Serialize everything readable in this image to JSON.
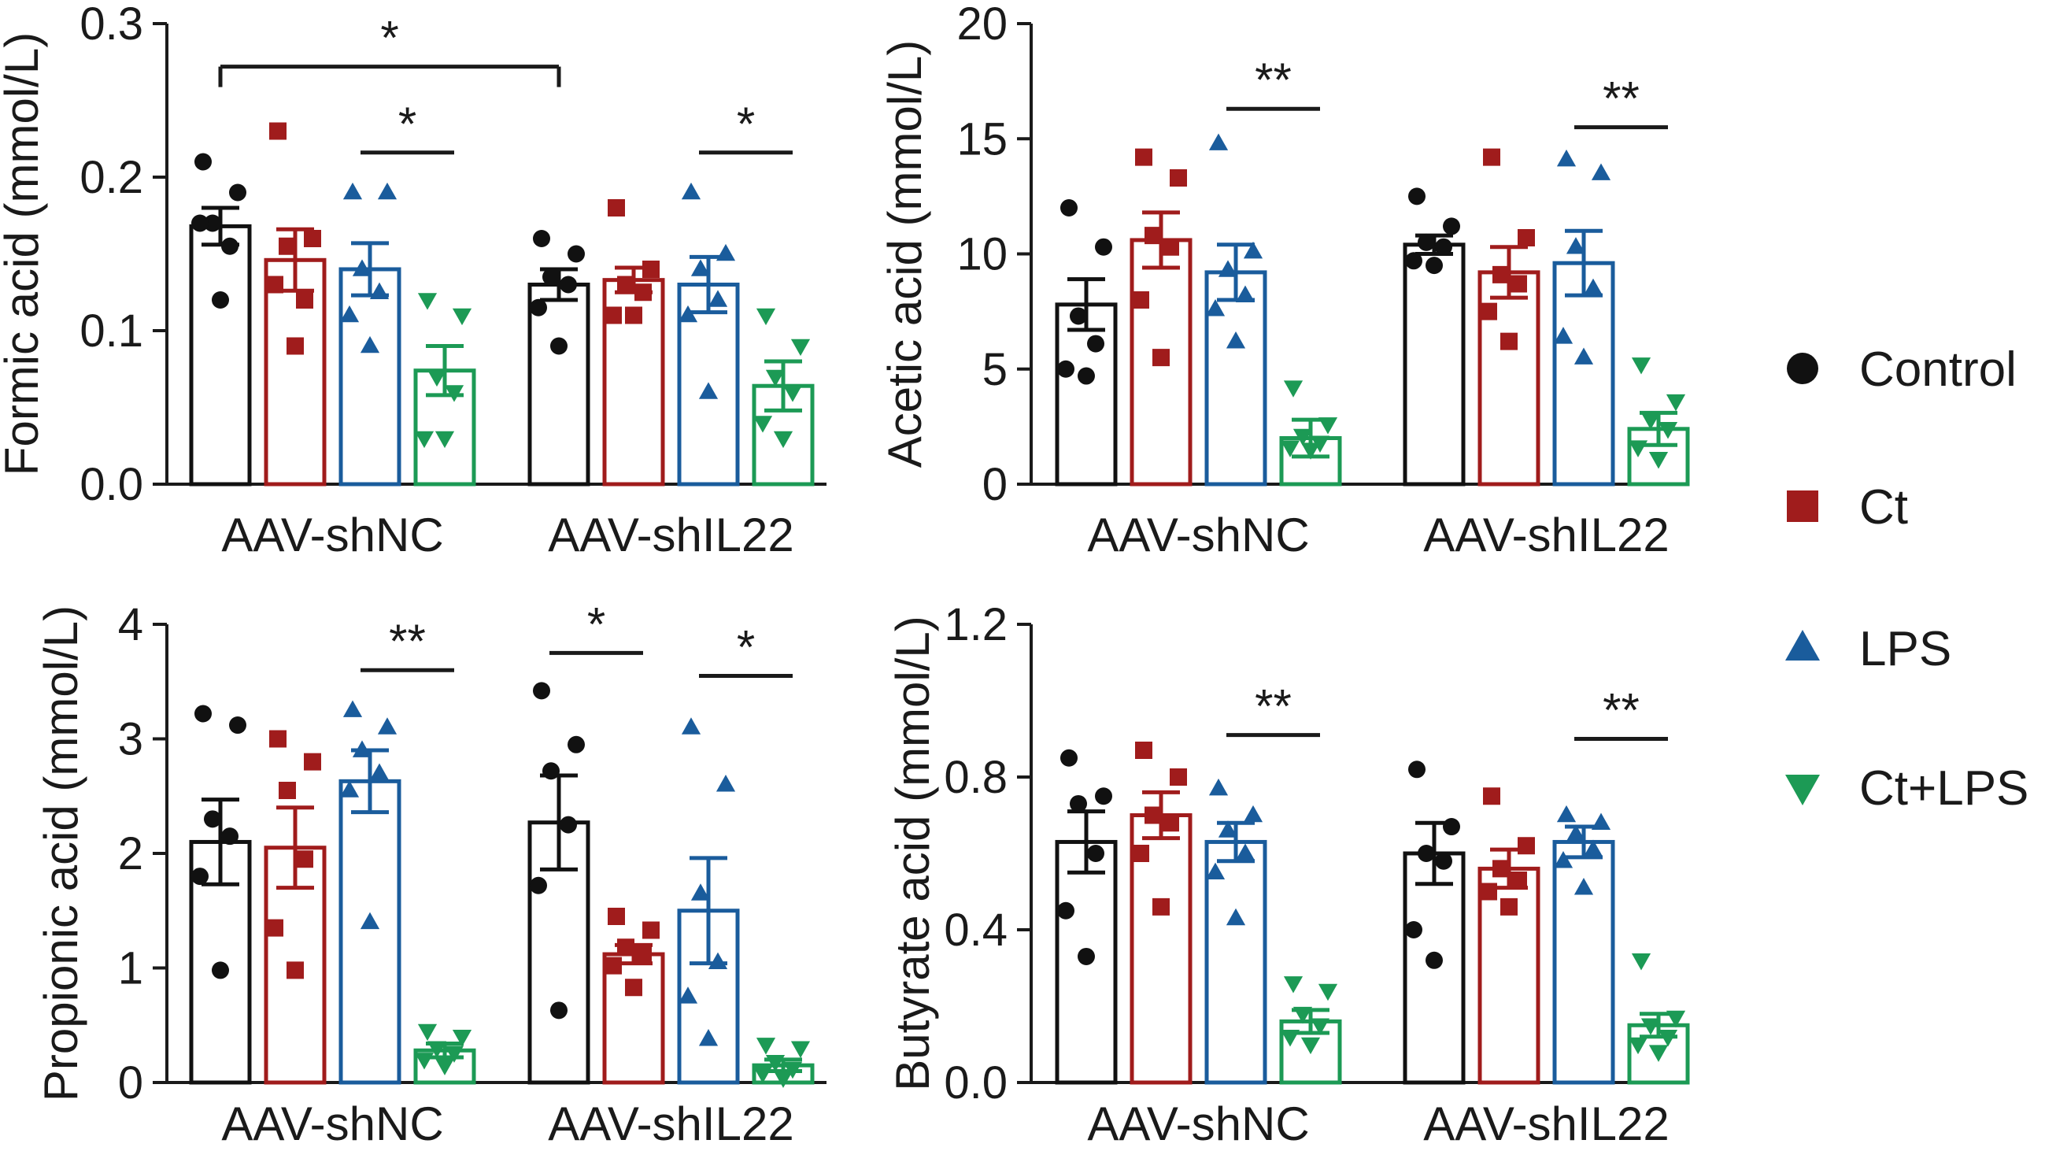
{
  "colors": {
    "Control": "#111111",
    "Ct": "#a01c1c",
    "LPS": "#1a5c9c",
    "Ct+LPS": "#1c9a55"
  },
  "legend": {
    "entries": [
      {
        "label": "Control",
        "marker": "circle",
        "color": "#111111"
      },
      {
        "label": "Ct",
        "marker": "square",
        "color": "#a01c1c"
      },
      {
        "label": "LPS",
        "marker": "triangle-up",
        "color": "#1a5c9c"
      },
      {
        "label": "Ct+LPS",
        "marker": "triangle-down",
        "color": "#1c9a55"
      }
    ]
  },
  "chart_data": [
    {
      "type": "bar",
      "ylabel": "Formic acid (mmol/L)",
      "ylim": [
        0,
        0.3
      ],
      "yticks": [
        "0.0",
        "0.1",
        "0.2",
        "0.3"
      ],
      "ytick_values": [
        0,
        0.1,
        0.2,
        0.3
      ],
      "groups": [
        "AAV-shNC",
        "AAV-shIL22"
      ],
      "series": [
        {
          "name": "Control",
          "marker": "circle",
          "means": [
            0.168,
            0.13
          ],
          "sem": [
            0.012,
            0.01
          ],
          "points": [
            [
              0.21,
              0.19,
              0.17,
              0.155,
              0.17,
              0.12
            ],
            [
              0.16,
              0.15,
              0.135,
              0.13,
              0.115,
              0.09
            ]
          ]
        },
        {
          "name": "Ct",
          "marker": "square",
          "means": [
            0.146,
            0.133
          ],
          "sem": [
            0.02,
            0.008
          ],
          "points": [
            [
              0.23,
              0.16,
              0.155,
              0.12,
              0.13,
              0.09
            ],
            [
              0.18,
              0.14,
              0.13,
              0.125,
              0.11,
              0.11
            ]
          ]
        },
        {
          "name": "LPS",
          "marker": "triangle-up",
          "means": [
            0.14,
            0.13
          ],
          "sem": [
            0.017,
            0.018
          ],
          "points": [
            [
              0.19,
              0.19,
              0.14,
              0.125,
              0.11,
              0.09
            ],
            [
              0.19,
              0.15,
              0.14,
              0.12,
              0.11,
              0.06
            ]
          ]
        },
        {
          "name": "Ct+LPS",
          "marker": "triangle-down",
          "means": [
            0.074,
            0.064
          ],
          "sem": [
            0.016,
            0.016
          ],
          "points": [
            [
              0.12,
              0.11,
              0.07,
              0.06,
              0.03,
              0.03
            ],
            [
              0.11,
              0.09,
              0.07,
              0.06,
              0.04,
              0.03
            ]
          ]
        }
      ],
      "significance": [
        {
          "text": "*",
          "from": [
            0,
            0
          ],
          "to": [
            1,
            0
          ],
          "y": 0.272,
          "bracket": true
        },
        {
          "text": "*",
          "from": [
            0,
            2
          ],
          "to": [
            0,
            3
          ],
          "y": 0.216,
          "bracket": false
        },
        {
          "text": "*",
          "from": [
            1,
            2
          ],
          "to": [
            1,
            3
          ],
          "y": 0.216,
          "bracket": false
        }
      ]
    },
    {
      "type": "bar",
      "ylabel": "Acetic acid (mmol/L)",
      "ylim": [
        0,
        20
      ],
      "yticks": [
        "0",
        "5",
        "10",
        "15",
        "20"
      ],
      "ytick_values": [
        0,
        5,
        10,
        15,
        20
      ],
      "groups": [
        "AAV-shNC",
        "AAV-shIL22"
      ],
      "series": [
        {
          "name": "Control",
          "marker": "circle",
          "means": [
            7.8,
            10.4
          ],
          "sem": [
            1.1,
            0.4
          ],
          "points": [
            [
              12.0,
              10.3,
              7.3,
              6.1,
              5.0,
              4.7
            ],
            [
              12.5,
              11.2,
              10.5,
              10.3,
              9.7,
              9.5
            ]
          ]
        },
        {
          "name": "Ct",
          "marker": "square",
          "means": [
            10.6,
            9.2
          ],
          "sem": [
            1.2,
            1.1
          ],
          "points": [
            [
              14.2,
              13.3,
              10.8,
              10.3,
              8.0,
              5.5
            ],
            [
              14.2,
              10.7,
              9.1,
              8.7,
              7.5,
              6.2
            ]
          ]
        },
        {
          "name": "LPS",
          "marker": "triangle-up",
          "means": [
            9.2,
            9.6
          ],
          "sem": [
            1.2,
            1.4
          ],
          "points": [
            [
              14.8,
              10.1,
              9.3,
              8.2,
              7.6,
              6.2
            ],
            [
              14.1,
              13.5,
              10.3,
              8.5,
              6.4,
              5.5
            ]
          ]
        },
        {
          "name": "Ct+LPS",
          "marker": "triangle-down",
          "means": [
            2.0,
            2.4
          ],
          "sem": [
            0.8,
            0.7
          ],
          "points": [
            [
              4.2,
              2.6,
              2.1,
              1.8,
              1.6,
              1.5
            ],
            [
              5.2,
              3.6,
              2.8,
              2.4,
              1.6,
              1.1
            ]
          ]
        }
      ],
      "significance": [
        {
          "text": "**",
          "from": [
            0,
            2
          ],
          "to": [
            0,
            3
          ],
          "y": 16.3,
          "bracket": false
        },
        {
          "text": "**",
          "from": [
            1,
            2
          ],
          "to": [
            1,
            3
          ],
          "y": 15.5,
          "bracket": false
        }
      ]
    },
    {
      "type": "bar",
      "ylabel": "Propionic acid (mmol/L)",
      "ylim": [
        0,
        4
      ],
      "yticks": [
        "0",
        "1",
        "2",
        "3",
        "4"
      ],
      "ytick_values": [
        0,
        1,
        2,
        3,
        4
      ],
      "groups": [
        "AAV-shNC",
        "AAV-shIL22"
      ],
      "series": [
        {
          "name": "Control",
          "marker": "circle",
          "means": [
            2.1,
            2.27
          ],
          "sem": [
            0.37,
            0.41
          ],
          "points": [
            [
              3.22,
              3.12,
              2.3,
              2.15,
              1.8,
              0.98
            ],
            [
              3.42,
              2.95,
              2.72,
              2.25,
              1.72,
              0.63
            ]
          ]
        },
        {
          "name": "Ct",
          "marker": "square",
          "means": [
            2.05,
            1.12
          ],
          "sem": [
            0.35,
            0.08
          ],
          "points": [
            [
              3.0,
              2.8,
              2.55,
              1.95,
              1.35,
              0.98
            ],
            [
              1.45,
              1.33,
              1.18,
              1.12,
              1.02,
              0.83
            ]
          ]
        },
        {
          "name": "LPS",
          "marker": "triangle-up",
          "means": [
            2.63,
            1.5
          ],
          "sem": [
            0.27,
            0.46
          ],
          "points": [
            [
              3.25,
              3.1,
              2.9,
              2.7,
              2.55,
              1.4
            ],
            [
              3.1,
              2.6,
              1.65,
              1.05,
              0.75,
              0.38
            ]
          ]
        },
        {
          "name": "Ct+LPS",
          "marker": "triangle-down",
          "means": [
            0.28,
            0.15
          ],
          "sem": [
            0.06,
            0.05
          ],
          "points": [
            [
              0.45,
              0.4,
              0.3,
              0.26,
              0.2,
              0.15
            ],
            [
              0.33,
              0.3,
              0.18,
              0.12,
              0.08,
              0.04
            ]
          ]
        }
      ],
      "significance": [
        {
          "text": "**",
          "from": [
            0,
            2
          ],
          "to": [
            0,
            3
          ],
          "y": 3.6,
          "bracket": false
        },
        {
          "text": "*",
          "from": [
            1,
            0
          ],
          "to": [
            1,
            1
          ],
          "y": 3.75,
          "bracket": false
        },
        {
          "text": "*",
          "from": [
            1,
            2
          ],
          "to": [
            1,
            3
          ],
          "y": 3.55,
          "bracket": false
        }
      ]
    },
    {
      "type": "bar",
      "ylabel": "Butyrate acid (mmol/L)",
      "ylim": [
        0,
        1.2
      ],
      "yticks": [
        "0.0",
        "0.4",
        "0.8",
        "1.2"
      ],
      "ytick_values": [
        0,
        0.4,
        0.8,
        1.2
      ],
      "groups": [
        "AAV-shNC",
        "AAV-shIL22"
      ],
      "series": [
        {
          "name": "Control",
          "marker": "circle",
          "means": [
            0.63,
            0.6
          ],
          "sem": [
            0.08,
            0.08
          ],
          "points": [
            [
              0.85,
              0.75,
              0.73,
              0.6,
              0.45,
              0.33
            ],
            [
              0.82,
              0.67,
              0.6,
              0.58,
              0.4,
              0.32
            ]
          ]
        },
        {
          "name": "Ct",
          "marker": "square",
          "means": [
            0.7,
            0.56
          ],
          "sem": [
            0.06,
            0.05
          ],
          "points": [
            [
              0.87,
              0.8,
              0.7,
              0.68,
              0.6,
              0.46
            ],
            [
              0.75,
              0.62,
              0.56,
              0.53,
              0.5,
              0.46
            ]
          ]
        },
        {
          "name": "LPS",
          "marker": "triangle-up",
          "means": [
            0.63,
            0.63
          ],
          "sem": [
            0.05,
            0.04
          ],
          "points": [
            [
              0.77,
              0.7,
              0.66,
              0.6,
              0.55,
              0.43
            ],
            [
              0.7,
              0.68,
              0.65,
              0.61,
              0.58,
              0.51
            ]
          ]
        },
        {
          "name": "Ct+LPS",
          "marker": "triangle-down",
          "means": [
            0.16,
            0.15
          ],
          "sem": [
            0.03,
            0.03
          ],
          "points": [
            [
              0.26,
              0.24,
              0.18,
              0.15,
              0.12,
              0.1
            ],
            [
              0.32,
              0.17,
              0.15,
              0.12,
              0.1,
              0.08
            ]
          ]
        }
      ],
      "significance": [
        {
          "text": "**",
          "from": [
            0,
            2
          ],
          "to": [
            0,
            3
          ],
          "y": 0.91,
          "bracket": false
        },
        {
          "text": "**",
          "from": [
            1,
            2
          ],
          "to": [
            1,
            3
          ],
          "y": 0.9,
          "bracket": false
        }
      ]
    }
  ]
}
